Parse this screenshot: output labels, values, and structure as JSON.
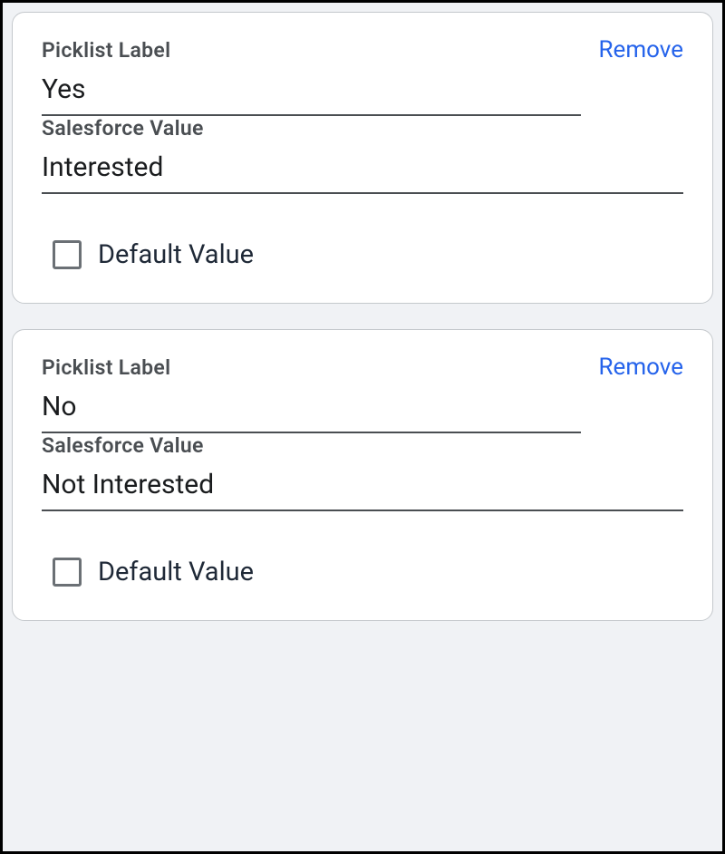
{
  "options": [
    {
      "picklist_label_title": "Picklist Label",
      "picklist_label_value": "Yes",
      "salesforce_value_title": "Salesforce Value",
      "salesforce_value_value": "Interested",
      "default_value_label": "Default Value",
      "default_checked": false,
      "remove_label": "Remove"
    },
    {
      "picklist_label_title": "Picklist Label",
      "picklist_label_value": "No",
      "salesforce_value_title": "Salesforce Value",
      "salesforce_value_value": "Not Interested",
      "default_value_label": "Default Value",
      "default_checked": false,
      "remove_label": "Remove"
    }
  ],
  "colors": {
    "link": "#2563eb",
    "text_primary": "#1a1c1e",
    "text_secondary": "#4a4e52",
    "border": "#c4c8cc",
    "checkbox_border": "#6b7075",
    "page_bg": "#f0f2f5"
  }
}
